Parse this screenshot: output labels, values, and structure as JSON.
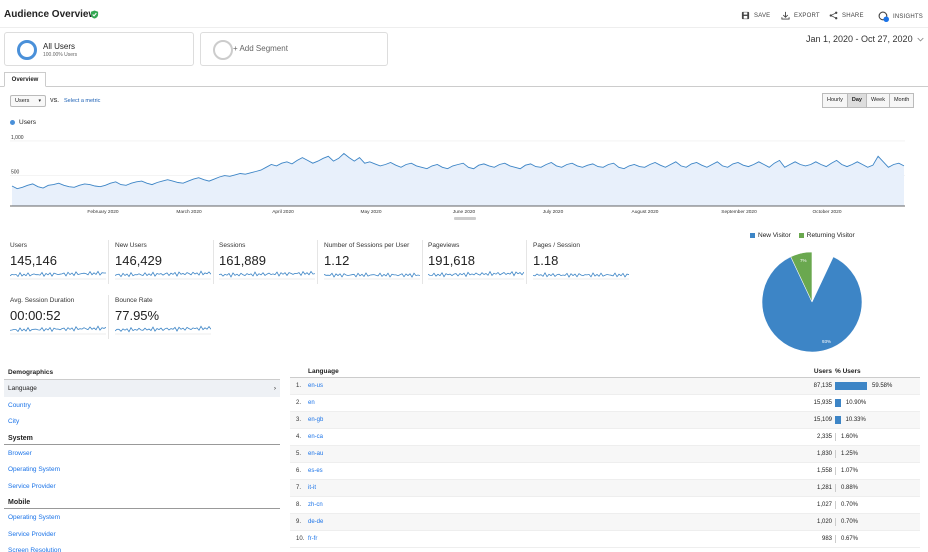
{
  "header": {
    "title": "Audience Overview",
    "save": "SAVE",
    "export": "EXPORT",
    "share": "SHARE",
    "insights": "INSIGHTS",
    "insights_badge": "5"
  },
  "segments": {
    "all_users": "All Users",
    "all_users_pct": "100.00% Users",
    "add_segment": "+ Add Segment"
  },
  "date_range": "Jan 1, 2020 - Oct 27, 2020",
  "tabs": {
    "overview": "Overview"
  },
  "controls": {
    "metric": "Users",
    "vs": "VS.",
    "select_metric": "Select a metric",
    "granularity": [
      "Hourly",
      "Day",
      "Week",
      "Month"
    ],
    "active_granularity": "Day"
  },
  "chart_data": {
    "type": "area",
    "series": [
      {
        "name": "Users"
      }
    ],
    "y_ticks": [
      "1,000",
      "500"
    ],
    "x_ticks": [
      "February 2020",
      "March 2020",
      "April 2020",
      "May 2020",
      "June 2020",
      "July 2020",
      "August 2020",
      "September 2020",
      "October 2020"
    ],
    "ylim": [
      0,
      1100
    ],
    "values": [
      290,
      250,
      270,
      300,
      320,
      280,
      260,
      300,
      310,
      330,
      300,
      280,
      270,
      300,
      320,
      310,
      290,
      280,
      300,
      330,
      350,
      310,
      300,
      330,
      350,
      360,
      330,
      310,
      340,
      360,
      380,
      360,
      340,
      330,
      360,
      390,
      410,
      380,
      360,
      390,
      420,
      440,
      430,
      450,
      470,
      460,
      480,
      500,
      520,
      560,
      600,
      580,
      620,
      640,
      610,
      660,
      700,
      660,
      620,
      650,
      690,
      720,
      650,
      690,
      760,
      700,
      650,
      700,
      620,
      640,
      610,
      580,
      600,
      630,
      590,
      560,
      600,
      620,
      580,
      560,
      540,
      580,
      600,
      560,
      540,
      580,
      600,
      620,
      560,
      540,
      590,
      610,
      580,
      560,
      600,
      620,
      580,
      560,
      540,
      590,
      610,
      570,
      560,
      600,
      630,
      580,
      560,
      600,
      620,
      580,
      560,
      590,
      610,
      570,
      560,
      600,
      620,
      560,
      540,
      580,
      600,
      570,
      560,
      600,
      630,
      590,
      560,
      600,
      640,
      580,
      560,
      610,
      630,
      590,
      560,
      600,
      640,
      580,
      560,
      610,
      630,
      590,
      570,
      600,
      640,
      600,
      560,
      620,
      660,
      560,
      600,
      640,
      600,
      580,
      600,
      640,
      600,
      570,
      620,
      660,
      600,
      570,
      600,
      640,
      600,
      560,
      590,
      720,
      640,
      560,
      600,
      620,
      580
    ]
  },
  "scorecards": [
    {
      "label": "Users",
      "value": "145,146"
    },
    {
      "label": "New Users",
      "value": "146,429"
    },
    {
      "label": "Sessions",
      "value": "161,889"
    },
    {
      "label": "Number of Sessions per User",
      "value": "1.12"
    },
    {
      "label": "Pageviews",
      "value": "191,618"
    },
    {
      "label": "Pages / Session",
      "value": "1.18"
    },
    {
      "label": "Avg. Session Duration",
      "value": "00:00:52"
    },
    {
      "label": "Bounce Rate",
      "value": "77.95%"
    }
  ],
  "pie": {
    "legend": [
      "New Visitor",
      "Returning Visitor"
    ],
    "colors": [
      "#3d85c6",
      "#6aa84f"
    ],
    "values": [
      93,
      7
    ],
    "labels": [
      "93%",
      "7%"
    ]
  },
  "demographics": {
    "title": "Demographics",
    "items": [
      "Language",
      "Country",
      "City"
    ],
    "system_title": "System",
    "system_items": [
      "Browser",
      "Operating System",
      "Service Provider"
    ],
    "mobile_title": "Mobile",
    "mobile_items": [
      "Operating System",
      "Service Provider",
      "Screen Resolution"
    ]
  },
  "language_table": {
    "col_language": "Language",
    "col_users": "Users",
    "col_pct": "% Users",
    "rows": [
      {
        "num": "1.",
        "lang": "en-us",
        "users": "87,135",
        "pct": "59.58%",
        "share": 59.58
      },
      {
        "num": "2.",
        "lang": "en",
        "users": "15,935",
        "pct": "10.90%",
        "share": 10.9
      },
      {
        "num": "3.",
        "lang": "en-gb",
        "users": "15,109",
        "pct": "10.33%",
        "share": 10.33
      },
      {
        "num": "4.",
        "lang": "en-ca",
        "users": "2,335",
        "pct": "1.60%",
        "share": 1.6
      },
      {
        "num": "5.",
        "lang": "en-au",
        "users": "1,830",
        "pct": "1.25%",
        "share": 1.25
      },
      {
        "num": "6.",
        "lang": "es-es",
        "users": "1,558",
        "pct": "1.07%",
        "share": 1.07
      },
      {
        "num": "7.",
        "lang": "it-it",
        "users": "1,281",
        "pct": "0.88%",
        "share": 0.88
      },
      {
        "num": "8.",
        "lang": "zh-cn",
        "users": "1,027",
        "pct": "0.70%",
        "share": 0.7
      },
      {
        "num": "9.",
        "lang": "de-de",
        "users": "1,020",
        "pct": "0.70%",
        "share": 0.7
      },
      {
        "num": "10.",
        "lang": "fr-fr",
        "users": "983",
        "pct": "0.67%",
        "share": 0.67
      }
    ]
  }
}
